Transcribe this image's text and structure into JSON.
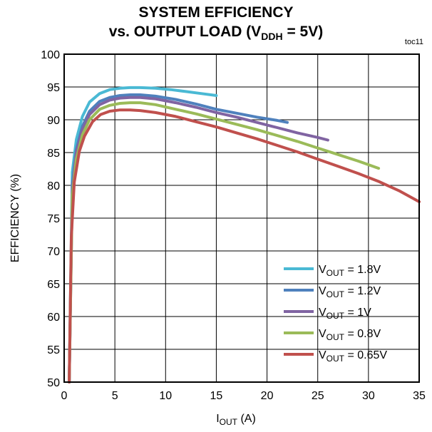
{
  "header": {
    "title_line1": "SYSTEM EFFICIENCY",
    "title_line2_prefix": "vs. OUTPUT LOAD  (V",
    "title_line2_sub": "DDH",
    "title_line2_suffix": " = 5V)",
    "tag": "toc11"
  },
  "chart_data": {
    "type": "line",
    "title": "SYSTEM EFFICIENCY vs. OUTPUT LOAD (VDDH = 5V)",
    "xlabel_main": "I",
    "xlabel_sub": "OUT",
    "xlabel_unit": " (A)",
    "ylabel": "EFFICIENCY (%)",
    "xlim": [
      0,
      35
    ],
    "ylim": [
      50,
      100
    ],
    "xticks": [
      0,
      5,
      10,
      15,
      20,
      25,
      30,
      35
    ],
    "yticks": [
      50,
      55,
      60,
      65,
      70,
      75,
      80,
      85,
      90,
      95,
      100
    ],
    "grid": true,
    "legend_position": "bottom-right",
    "series": [
      {
        "name": "VOUT = 1.8V",
        "name_prefix": "V",
        "name_sub": "OUT",
        "name_suffix": " = 1.8V",
        "color": "#4ab9d4",
        "x": [
          0.5,
          0.8,
          1.2,
          1.8,
          2.5,
          3.5,
          4.5,
          5.5,
          6.5,
          7.5,
          9,
          10.5,
          12,
          13.5,
          15
        ],
        "y": [
          50,
          82,
          87,
          90.5,
          92.7,
          94.0,
          94.6,
          94.8,
          94.9,
          94.9,
          94.8,
          94.6,
          94.3,
          94.0,
          93.7
        ]
      },
      {
        "name": "VOUT = 1.2V",
        "name_prefix": "V",
        "name_sub": "OUT",
        "name_suffix": " = 1.2V",
        "color": "#4f81bd",
        "x": [
          0.5,
          0.8,
          1.2,
          1.8,
          2.5,
          3.5,
          4.5,
          5.5,
          6.5,
          7.5,
          9,
          11,
          13,
          15,
          17,
          19,
          21,
          22
        ],
        "y": [
          50,
          80,
          85.5,
          89,
          91.3,
          92.8,
          93.4,
          93.7,
          93.8,
          93.8,
          93.6,
          93.1,
          92.4,
          91.6,
          91.0,
          90.4,
          89.9,
          89.6
        ]
      },
      {
        "name": "VOUT = 1V",
        "name_prefix": "V",
        "name_sub": "OUT",
        "name_suffix": " = 1V",
        "color": "#8064a2",
        "x": [
          0.5,
          0.8,
          1.2,
          1.8,
          2.5,
          3.5,
          4.5,
          5.5,
          6.5,
          7.5,
          9,
          11,
          13,
          15,
          17,
          19,
          21,
          23,
          25,
          26
        ],
        "y": [
          50,
          79,
          85,
          88.5,
          90.8,
          92.3,
          93.0,
          93.3,
          93.4,
          93.4,
          93.2,
          92.6,
          91.9,
          91.1,
          90.4,
          89.6,
          88.8,
          88.0,
          87.3,
          86.9
        ]
      },
      {
        "name": "VOUT = 0.8V",
        "name_prefix": "V",
        "name_sub": "OUT",
        "name_suffix": " = 0.8V",
        "color": "#9bbb59",
        "x": [
          0.5,
          0.8,
          1.2,
          1.8,
          2.5,
          3.5,
          4.5,
          5.5,
          6.5,
          7.5,
          9,
          11,
          13,
          15,
          17,
          19,
          21,
          23,
          25,
          27,
          29,
          31
        ],
        "y": [
          50,
          78.5,
          84,
          87.7,
          90.0,
          91.6,
          92.2,
          92.5,
          92.6,
          92.6,
          92.3,
          91.6,
          90.9,
          90.1,
          89.3,
          88.5,
          87.6,
          86.7,
          85.7,
          84.7,
          83.7,
          82.6
        ]
      },
      {
        "name": "VOUT = 0.65V",
        "name_prefix": "V",
        "name_sub": "OUT",
        "name_suffix": " = 0.65V",
        "color": "#c0504d",
        "x": [
          0.5,
          0.7,
          1.0,
          1.5,
          2.0,
          2.8,
          3.6,
          4.5,
          5.5,
          6.5,
          7.5,
          9,
          11,
          13,
          15,
          17,
          19,
          21,
          23,
          25,
          27,
          29,
          31,
          33,
          35
        ],
        "y": [
          50,
          72,
          80.5,
          85.2,
          87.5,
          89.7,
          90.8,
          91.3,
          91.5,
          91.5,
          91.4,
          91.1,
          90.5,
          89.7,
          88.9,
          88.0,
          87.1,
          86.1,
          85.1,
          84.0,
          82.9,
          81.8,
          80.6,
          79.2,
          77.5
        ]
      }
    ]
  }
}
